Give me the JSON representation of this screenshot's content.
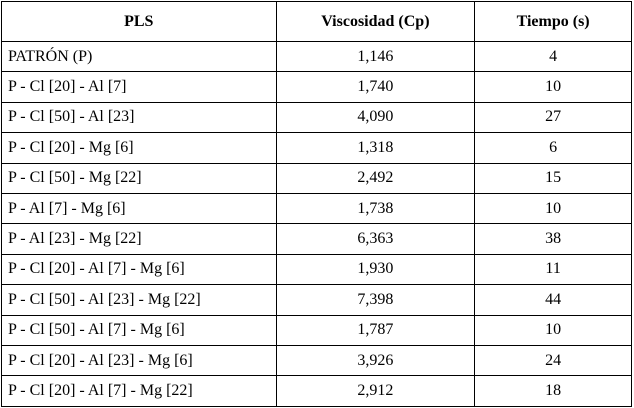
{
  "table": {
    "headers": [
      "PLS",
      "Viscosidad (Cp)",
      "Tiempo (s)"
    ],
    "rows": [
      [
        "PATRÓN (P)",
        "1,146",
        "4"
      ],
      [
        "P - Cl [20] - Al [7]",
        "1,740",
        "10"
      ],
      [
        "P - Cl [50] - Al [23]",
        "4,090",
        "27"
      ],
      [
        "P - Cl [20] - Mg [6]",
        "1,318",
        "6"
      ],
      [
        "P - Cl [50] - Mg [22]",
        "2,492",
        "15"
      ],
      [
        "P - Al [7] - Mg [6]",
        "1,738",
        "10"
      ],
      [
        "P - Al [23] - Mg [22]",
        "6,363",
        "38"
      ],
      [
        "P - Cl [20] - Al [7] - Mg [6]",
        "1,930",
        "11"
      ],
      [
        "P - Cl [50] - Al [23] - Mg [22]",
        "7,398",
        "44"
      ],
      [
        "P - Cl [50] - Al [7] - Mg [6]",
        "1,787",
        "10"
      ],
      [
        "P - Cl [20] - Al [23] - Mg [6]",
        "3,926",
        "24"
      ],
      [
        "P - Cl [20] - Al [7] - Mg [22]",
        "2,912",
        "18"
      ]
    ]
  }
}
